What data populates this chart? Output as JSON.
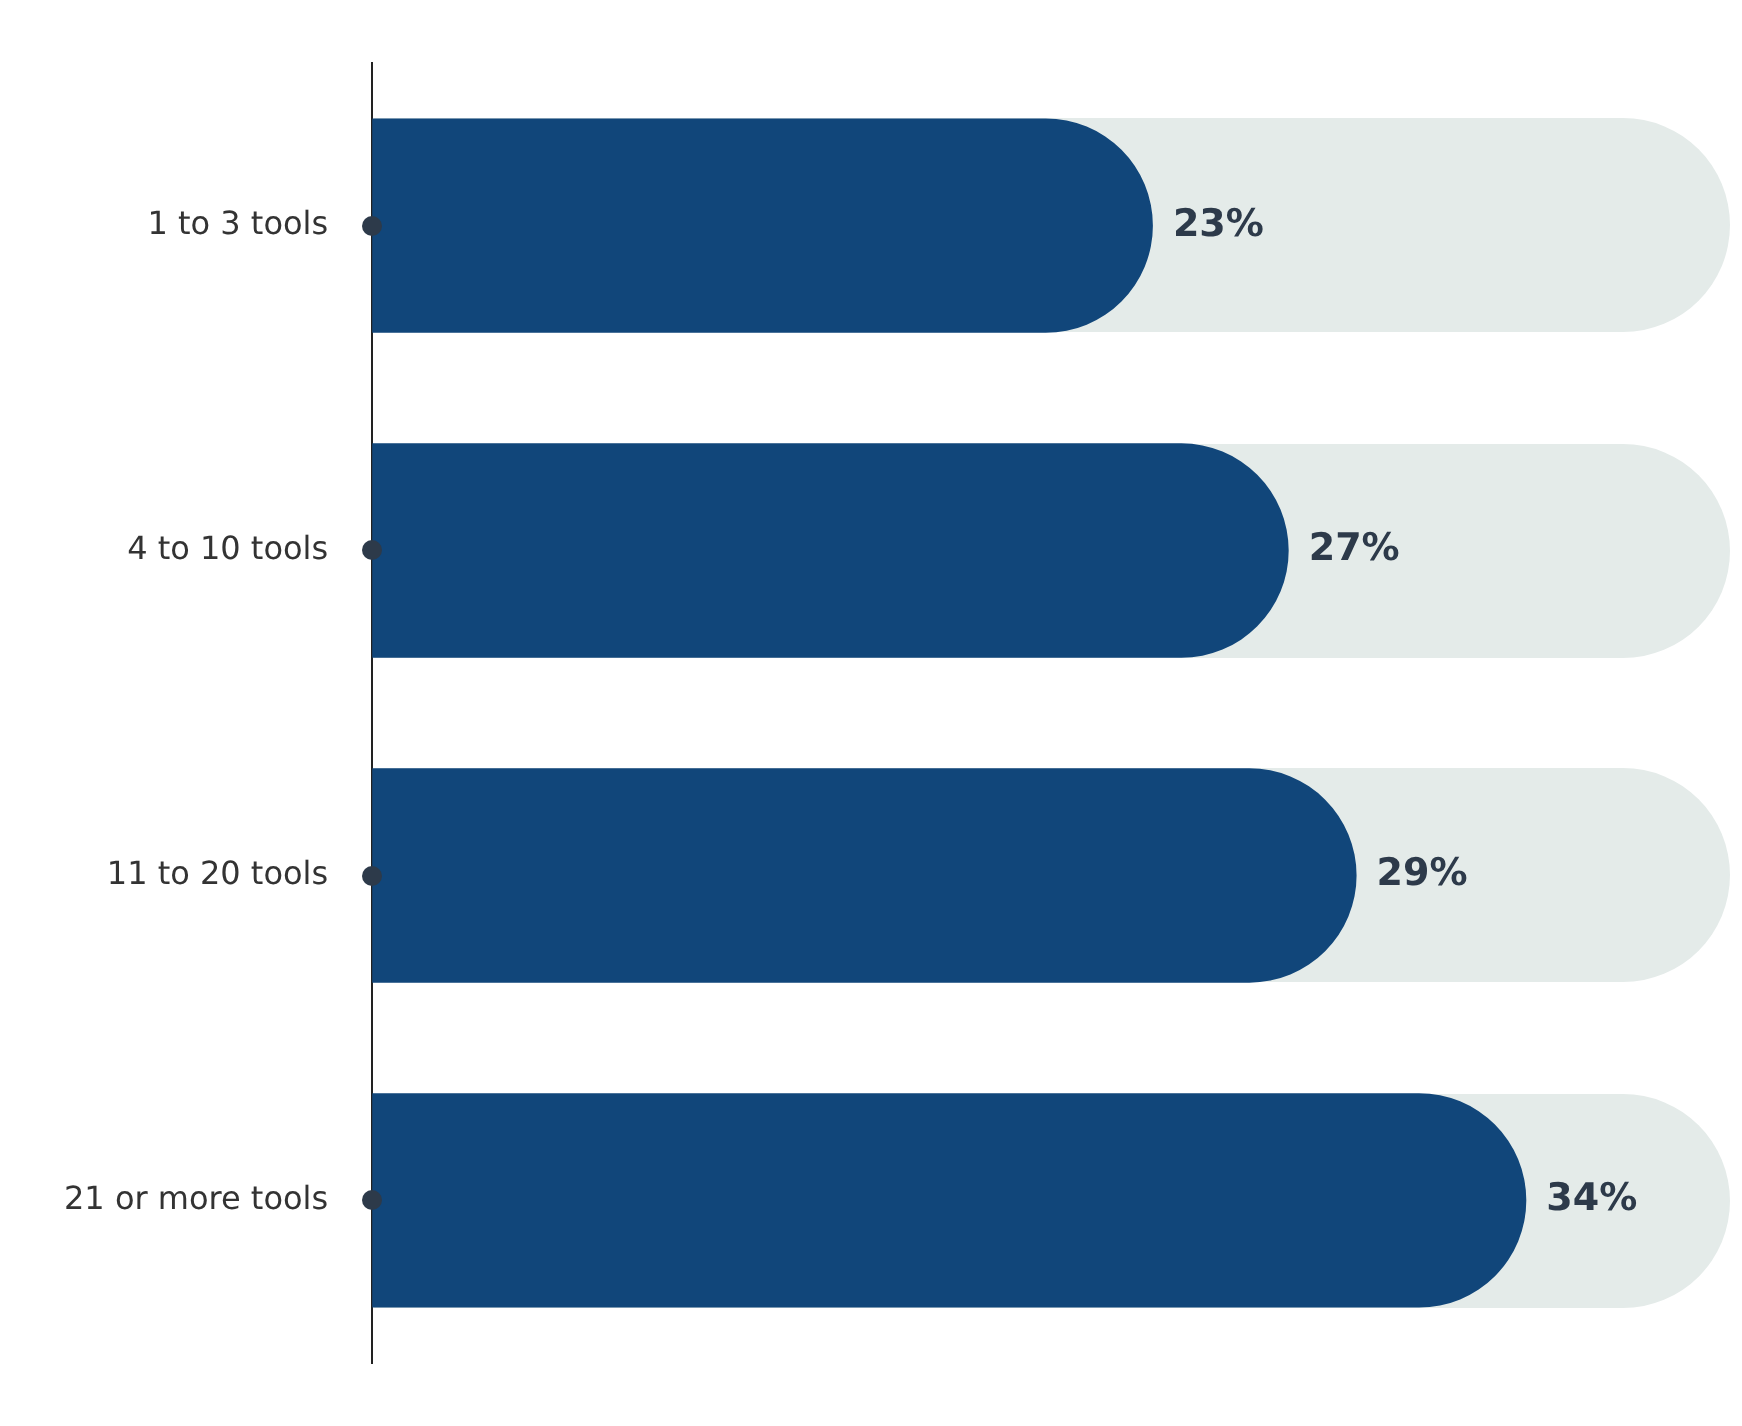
{
  "chart_data": {
    "type": "bar",
    "orientation": "horizontal",
    "categories": [
      "1 to 3 tools",
      "4 to 10 tools",
      "11 to 20 tools",
      "21 or more tools"
    ],
    "values": [
      23,
      27,
      29,
      34
    ],
    "color": "#11467a",
    "value_labels": [
      "23%",
      "27%",
      "29%",
      "34%"
    ],
    "tick_labels": "y"
  }
}
